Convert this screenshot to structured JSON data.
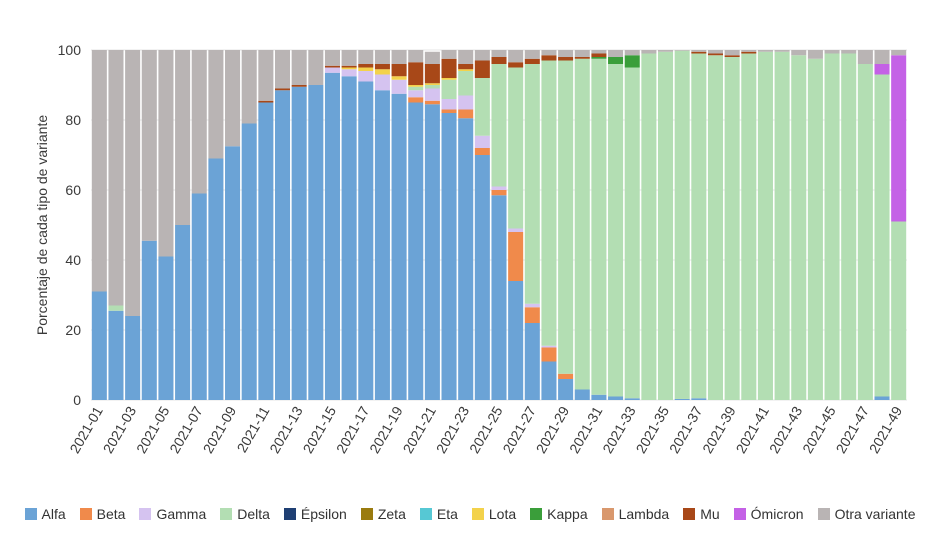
{
  "chart_data": {
    "type": "bar",
    "stacked": true,
    "ylabel": "Porcentaje de cada tipo de variante",
    "xlabel": "",
    "ylim": [
      0,
      100
    ],
    "yticks": [
      0,
      20,
      40,
      60,
      80,
      100
    ],
    "x_tick_labels": [
      "2021-01",
      "2021-03",
      "2021-05",
      "2021-07",
      "2021-09",
      "2021-11",
      "2021-13",
      "2021-15",
      "2021-17",
      "2021-19",
      "2021-21",
      "2021-23",
      "2021-25",
      "2021-27",
      "2021-29",
      "2021-31",
      "2021-33",
      "2021-35",
      "2021-37",
      "2021-39",
      "2021-41",
      "2021-43",
      "2021-45",
      "2021-47",
      "2021-49"
    ],
    "categories": [
      "2021-01",
      "2021-02",
      "2021-03",
      "2021-04",
      "2021-05",
      "2021-06",
      "2021-07",
      "2021-08",
      "2021-09",
      "2021-10",
      "2021-11",
      "2021-12",
      "2021-13",
      "2021-14",
      "2021-15",
      "2021-16",
      "2021-17",
      "2021-18",
      "2021-19",
      "2021-20",
      "2021-21",
      "2021-22",
      "2021-23",
      "2021-24",
      "2021-25",
      "2021-26",
      "2021-27",
      "2021-28",
      "2021-29",
      "2021-30",
      "2021-31",
      "2021-32",
      "2021-33",
      "2021-34",
      "2021-35",
      "2021-36",
      "2021-37",
      "2021-38",
      "2021-39",
      "2021-40",
      "2021-41",
      "2021-42",
      "2021-43",
      "2021-44",
      "2021-45",
      "2021-46",
      "2021-47",
      "2021-48",
      "2021-49"
    ],
    "series": [
      {
        "name": "Alfa",
        "color": "#6ba3d6",
        "values": [
          31,
          25.5,
          24,
          45.5,
          41,
          50,
          59,
          69,
          72.5,
          79,
          85,
          88.5,
          89.5,
          90,
          93.5,
          92.5,
          91,
          88.5,
          87.5,
          85,
          84.5,
          82,
          80.5,
          70,
          58.5,
          34,
          22,
          11,
          6,
          3,
          1.5,
          1,
          0.5,
          0,
          0,
          0.3,
          0.5,
          0,
          0,
          0,
          0,
          0,
          0,
          0,
          0,
          0,
          0,
          1,
          0
        ]
      },
      {
        "name": "Beta",
        "color": "#f08a4b",
        "values": [
          0,
          0,
          0,
          0,
          0,
          0,
          0,
          0,
          0,
          0,
          0,
          0,
          0,
          0,
          0,
          0,
          0,
          0,
          0,
          1.5,
          1,
          1,
          2.5,
          2,
          1.5,
          14,
          4.5,
          4,
          1.5,
          0,
          0,
          0,
          0,
          0,
          0,
          0,
          0,
          0,
          0,
          0,
          0,
          0,
          0,
          0,
          0,
          0,
          0,
          0,
          0
        ]
      },
      {
        "name": "Gamma",
        "color": "#d5c3f0",
        "values": [
          0,
          0,
          0,
          0,
          0,
          0,
          0,
          0,
          0,
          0,
          0,
          0,
          0,
          0,
          1.5,
          2,
          3,
          4.5,
          4,
          2,
          3.5,
          3,
          4,
          3.5,
          1,
          1,
          1,
          0.5,
          0,
          0,
          0,
          0,
          0,
          0,
          0,
          0,
          0,
          0,
          0,
          0,
          0,
          0,
          0,
          0,
          0,
          0,
          0,
          0,
          0
        ]
      },
      {
        "name": "Delta",
        "color": "#b3deb3",
        "values": [
          0,
          1.5,
          0,
          0,
          0,
          0,
          0,
          0,
          0,
          0,
          0,
          0,
          0,
          0,
          0,
          0,
          0,
          0,
          0,
          1,
          1,
          5.5,
          7,
          16.5,
          35,
          46,
          68.5,
          81.5,
          89.5,
          94.5,
          96,
          95,
          94.5,
          99,
          99.5,
          99.5,
          98.5,
          98.5,
          98,
          99,
          99.5,
          99.5,
          98.5,
          97.5,
          99,
          99,
          96,
          92,
          51
        ]
      },
      {
        "name": "Épsilon",
        "color": "#1f3f73",
        "values": [
          0,
          0,
          0,
          0,
          0,
          0,
          0,
          0,
          0,
          0,
          0,
          0,
          0,
          0,
          0,
          0,
          0,
          0,
          0,
          0,
          0,
          0,
          0,
          0,
          0,
          0,
          0,
          0,
          0,
          0,
          0,
          0,
          0,
          0,
          0,
          0,
          0,
          0,
          0,
          0,
          0,
          0,
          0,
          0,
          0,
          0,
          0,
          0,
          0
        ]
      },
      {
        "name": "Zeta",
        "color": "#9a7b0f",
        "values": [
          0,
          0,
          0,
          0,
          0,
          0,
          0,
          0,
          0,
          0,
          0,
          0,
          0,
          0,
          0,
          0,
          0,
          0,
          0,
          0,
          0,
          0,
          0,
          0,
          0,
          0,
          0,
          0,
          0,
          0,
          0,
          0,
          0,
          0,
          0,
          0,
          0,
          0,
          0,
          0,
          0,
          0,
          0,
          0,
          0,
          0,
          0,
          0,
          0
        ]
      },
      {
        "name": "Eta",
        "color": "#56c8d4",
        "values": [
          0,
          0,
          0,
          0,
          0,
          0,
          0,
          0,
          0,
          0,
          0,
          0,
          0,
          0,
          0,
          0,
          0,
          0,
          0,
          0,
          0,
          0,
          0,
          0,
          0,
          0,
          0,
          0,
          0,
          0,
          0,
          0,
          0,
          0,
          0,
          0,
          0,
          0,
          0,
          0,
          0,
          0,
          0,
          0,
          0,
          0,
          0,
          0,
          0
        ]
      },
      {
        "name": "Lota",
        "color": "#f3d24b",
        "values": [
          0,
          0,
          0,
          0,
          0,
          0,
          0,
          0,
          0,
          0,
          0,
          0,
          0,
          0,
          0,
          0.5,
          1,
          1.5,
          1,
          0.5,
          0.5,
          0.5,
          0.5,
          0,
          0,
          0,
          0,
          0,
          0,
          0,
          0,
          0,
          0,
          0,
          0,
          0,
          0,
          0,
          0,
          0,
          0,
          0,
          0,
          0,
          0,
          0,
          0,
          0,
          0
        ]
      },
      {
        "name": "Kappa",
        "color": "#3a9e3a",
        "values": [
          0,
          0,
          0,
          0,
          0,
          0,
          0,
          0,
          0,
          0,
          0,
          0,
          0,
          0,
          0,
          0,
          0,
          0,
          0,
          0,
          0,
          0,
          0,
          0,
          0,
          0,
          0,
          0,
          0,
          0,
          0.5,
          2,
          3.5,
          0,
          0,
          0,
          0,
          0,
          0,
          0,
          0,
          0,
          0,
          0,
          0,
          0,
          0,
          0,
          0
        ]
      },
      {
        "name": "Lambda",
        "color": "#d9986d",
        "values": [
          0,
          0,
          0,
          0,
          0,
          0,
          0,
          0,
          0,
          0,
          0,
          0,
          0,
          0,
          0,
          0,
          0,
          0,
          0,
          0,
          0,
          0,
          0,
          0,
          0,
          0,
          0,
          0,
          0,
          0,
          0,
          0,
          0,
          0,
          0,
          0,
          0,
          0,
          0,
          0,
          0,
          0,
          0,
          0,
          0,
          0,
          0,
          0,
          0
        ]
      },
      {
        "name": "Mu",
        "color": "#a84818",
        "values": [
          0,
          0,
          0,
          0,
          0,
          0,
          0,
          0,
          0,
          0,
          0.5,
          0.5,
          0.5,
          0,
          0.5,
          0.5,
          1,
          1.5,
          3.5,
          6.5,
          5.5,
          5.5,
          1.5,
          5,
          2,
          1.5,
          1.5,
          1.5,
          1,
          0.5,
          1,
          0,
          0,
          0,
          0,
          0,
          0.5,
          0.5,
          0.5,
          0.5,
          0,
          0,
          0,
          0,
          0,
          0,
          0,
          0,
          0
        ]
      },
      {
        "name": "Ómicron",
        "color": "#c461e6",
        "values": [
          0,
          0,
          0,
          0,
          0,
          0,
          0,
          0,
          0,
          0,
          0,
          0,
          0,
          0,
          0,
          0,
          0,
          0,
          0,
          0,
          0,
          0,
          0,
          0,
          0,
          0,
          0,
          0,
          0,
          0,
          0,
          0,
          0,
          0,
          0,
          0,
          0,
          0,
          0,
          0,
          0,
          0,
          0,
          0,
          0,
          0,
          0,
          3,
          47.5
        ]
      },
      {
        "name": "Otra variante",
        "color": "#b9b4b4",
        "values": [
          69,
          73,
          76,
          54.5,
          59,
          50,
          41,
          31,
          27.5,
          21,
          14.5,
          11,
          10,
          10,
          4.5,
          4.5,
          4,
          4,
          4,
          3.5,
          3.5,
          2.5,
          4,
          3,
          2,
          3.5,
          2.5,
          1.5,
          2,
          2,
          1,
          2,
          1.5,
          1,
          0.5,
          0.2,
          0.5,
          1,
          1.5,
          0.5,
          0.5,
          0.5,
          1.5,
          2.5,
          1,
          1,
          4,
          4,
          1.5
        ]
      }
    ],
    "legend": {
      "placement": "bottom-center"
    }
  }
}
